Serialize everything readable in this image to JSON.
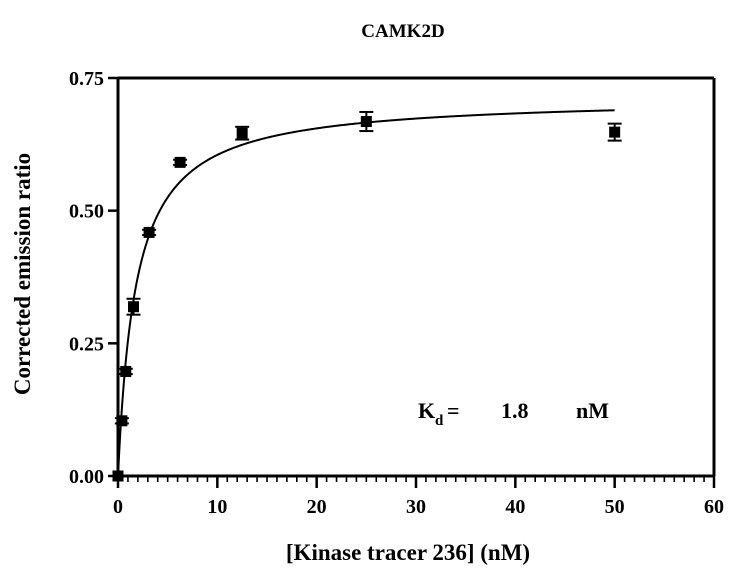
{
  "chart_data": {
    "type": "scatter",
    "title": "CAMK2D",
    "xlabel": "[Kinase tracer 236] (nM)",
    "ylabel": "Corrected emission ratio",
    "xlim": [
      0,
      60
    ],
    "ylim": [
      0,
      0.75
    ],
    "x_ticks": [
      "0",
      "10",
      "20",
      "30",
      "40",
      "50",
      "60"
    ],
    "y_ticks": [
      "0.00",
      "0.25",
      "0.50",
      "0.75"
    ],
    "x_minor_step": 1,
    "grid": false,
    "series": [
      {
        "points": [
          {
            "x": 0,
            "y": 0.0,
            "err": 0.0
          },
          {
            "x": 0.39,
            "y": 0.104,
            "err": 0.005
          },
          {
            "x": 0.78,
            "y": 0.197,
            "err": 0.005
          },
          {
            "x": 1.56,
            "y": 0.319,
            "err": 0.015
          },
          {
            "x": 3.13,
            "y": 0.459,
            "err": 0.005
          },
          {
            "x": 6.25,
            "y": 0.591,
            "err": 0.005
          },
          {
            "x": 12.5,
            "y": 0.646,
            "err": 0.012
          },
          {
            "x": 25,
            "y": 0.668,
            "err": 0.018
          },
          {
            "x": 50,
            "y": 0.648,
            "err": 0.016
          }
        ]
      }
    ],
    "fit": {
      "model": "one-site binding",
      "bmax": 0.714,
      "kd": 1.8,
      "x_range": [
        0,
        50
      ]
    },
    "annotation": {
      "symbol": "K",
      "subscript": "d",
      "equals": "=",
      "value": "1.8",
      "unit": "nM"
    }
  }
}
